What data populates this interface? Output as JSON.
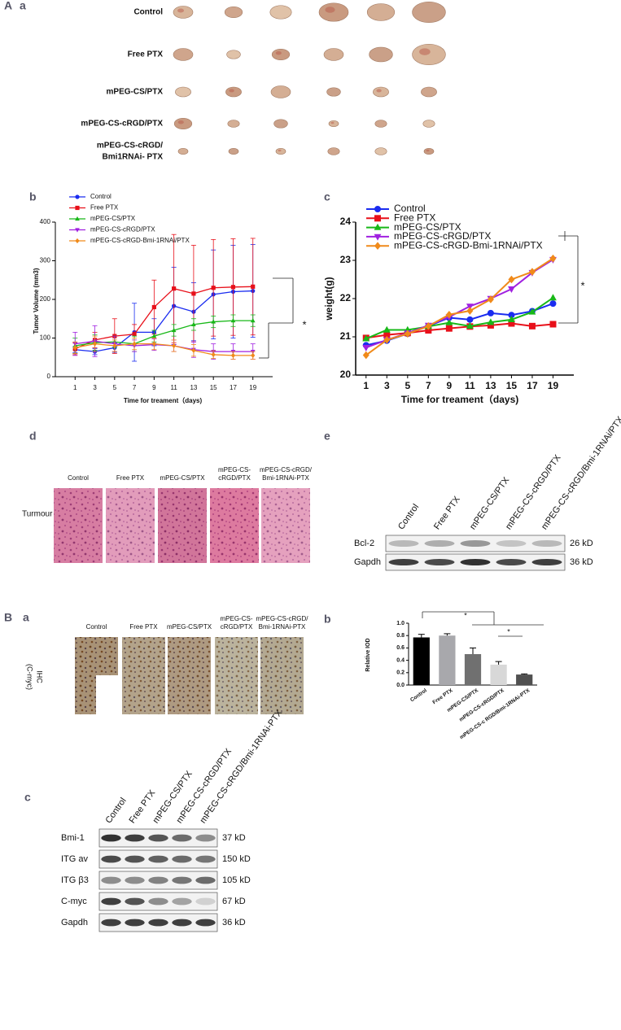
{
  "panel_labels": {
    "A": "A",
    "A_a": "a",
    "A_b": "b",
    "A_c": "c",
    "A_d": "d",
    "A_e": "e",
    "B": "B",
    "B_a": "a",
    "B_b": "b",
    "B_c": "c"
  },
  "tumor_photos": {
    "rows": [
      [
        "Control"
      ],
      [
        "Free PTX"
      ],
      [
        "mPEG-CS/PTX"
      ],
      [
        "mPEG-CS-cRGD/PTX"
      ],
      [
        "mPEG-CS-cRGD/",
        "Bmi1RNAi- PTX"
      ]
    ]
  },
  "histology": {
    "columns": [
      [
        "Control"
      ],
      [
        "Free PTX"
      ],
      [
        "mPEG-CS/PTX"
      ],
      [
        "mPEG-CS-",
        "cRGD/PTX"
      ],
      [
        "mPEG-CS-cRGD/",
        "Bmi-1RNAi-PTX"
      ]
    ],
    "row": "Turmour"
  },
  "blot_e": {
    "lanes": [
      "Control",
      "Free PTX",
      "mPEG-CS/PTX",
      "mPEG-CS-cRGD/PTX",
      "mPEG-CS-cRGD/Bmi-1RNAi/PTX"
    ],
    "rows": [
      {
        "protein": "Bcl-2",
        "size": "26 kD"
      },
      {
        "protein": "Gapdh",
        "size": "36 kD"
      }
    ]
  },
  "ihc": {
    "columns": [
      [
        "Control"
      ],
      [
        "Free PTX"
      ],
      [
        "mPEG-CS/PTX"
      ],
      [
        "mPEG-CS-",
        "cRGD/PTX"
      ],
      [
        "mPEG-CS-cRGD/",
        "Bmi-1RNAi-PTX"
      ]
    ],
    "row": [
      "IHC",
      "(C-myc)"
    ]
  },
  "blot_c": {
    "lanes": [
      "Control",
      "Free PTX",
      "mPEG-CS/PTX",
      "mPEG-CS-cRGD/PTX",
      "mPEG-CS-cRGD/Bmi-1RNAi-PTX"
    ],
    "rows": [
      {
        "protein": "Bmi-1",
        "size": "37 kD"
      },
      {
        "protein": "ITG av",
        "size": "150 kD"
      },
      {
        "protein": "ITG β3",
        "size": "105 kD"
      },
      {
        "protein": "C-myc",
        "size": "67 kD"
      },
      {
        "protein": "Gapdh",
        "size": "36 kD"
      }
    ]
  },
  "chart_data": [
    {
      "type": "line",
      "x_label": "Time for treament（days)",
      "y_label": "Tumor Volume (mm3)",
      "annotations": [
        "*"
      ],
      "x": [
        1,
        3,
        5,
        7,
        9,
        11,
        13,
        15,
        17,
        19
      ],
      "xlim": [
        -1,
        21
      ],
      "xticks": [
        1,
        3,
        5,
        7,
        9,
        11,
        13,
        15,
        17,
        19
      ],
      "ylim": [
        0,
        400
      ],
      "yticks": [
        0,
        100,
        200,
        300,
        400
      ],
      "series": [
        {
          "name": "Control",
          "color": "#1a2cf0",
          "marker": "circle",
          "values": [
            70,
            65,
            75,
            115,
            115,
            183,
            168,
            213,
            220,
            222
          ],
          "errors": [
            8,
            8,
            12,
            75,
            35,
            100,
            75,
            115,
            120,
            120
          ]
        },
        {
          "name": "Free PTX",
          "color": "#e8101a",
          "marker": "square",
          "values": [
            72,
            95,
            105,
            110,
            180,
            228,
            215,
            230,
            232,
            233
          ],
          "errors": [
            15,
            20,
            45,
            25,
            70,
            140,
            125,
            125,
            125,
            125
          ]
        },
        {
          "name": "mPEG-CS/PTX",
          "color": "#18b818",
          "marker": "triangle-up",
          "values": [
            80,
            88,
            90,
            85,
            105,
            120,
            135,
            142,
            145,
            145
          ],
          "errors": [
            20,
            20,
            15,
            20,
            15,
            15,
            15,
            15,
            15,
            15
          ]
        },
        {
          "name": "mPEG-CS-cRGD/PTX",
          "color": "#a020e0",
          "marker": "triangle-down",
          "values": [
            85,
            92,
            85,
            80,
            83,
            80,
            70,
            65,
            65,
            65
          ],
          "errors": [
            30,
            40,
            20,
            15,
            15,
            15,
            20,
            20,
            20,
            20
          ]
        },
        {
          "name": "mPEG-CS-cRGD-Bmi-1RNAi/PTX",
          "color": "#f08a1a",
          "marker": "diamond",
          "values": [
            75,
            85,
            80,
            85,
            85,
            80,
            68,
            57,
            55,
            55
          ],
          "errors": [
            15,
            20,
            15,
            15,
            15,
            15,
            15,
            10,
            10,
            10
          ]
        }
      ]
    },
    {
      "type": "line",
      "x_label": "Time for treament（days)",
      "y_label": "weight(g)",
      "annotations": [
        "*"
      ],
      "x": [
        1,
        3,
        5,
        7,
        9,
        11,
        13,
        15,
        17,
        19
      ],
      "xlim": [
        0,
        21
      ],
      "xticks": [
        1,
        3,
        5,
        7,
        9,
        11,
        13,
        15,
        17,
        19
      ],
      "ylim": [
        20,
        24
      ],
      "yticks": [
        20,
        21,
        22,
        23,
        24
      ],
      "series": [
        {
          "name": "Control",
          "color": "#1a2cf0",
          "marker": "circle",
          "values": [
            20.78,
            20.9,
            21.08,
            21.28,
            21.5,
            21.45,
            21.62,
            21.57,
            21.67,
            21.87
          ]
        },
        {
          "name": "Free PTX",
          "color": "#e8101a",
          "marker": "square",
          "values": [
            20.97,
            21.05,
            21.1,
            21.17,
            21.22,
            21.27,
            21.3,
            21.35,
            21.28,
            21.33
          ]
        },
        {
          "name": "mPEG-CS/PTX",
          "color": "#18b818",
          "marker": "triangle-up",
          "values": [
            20.95,
            21.18,
            21.18,
            21.27,
            21.37,
            21.28,
            21.38,
            21.45,
            21.65,
            22.02
          ]
        },
        {
          "name": "mPEG-CS-cRGD/PTX",
          "color": "#a020e0",
          "marker": "triangle-down",
          "values": [
            20.72,
            20.92,
            21.1,
            21.3,
            21.52,
            21.8,
            22.0,
            22.25,
            22.68,
            23.02
          ]
        },
        {
          "name": "mPEG-CS-cRGD-Bmi-1RNAi/PTX",
          "color": "#f08a1a",
          "marker": "diamond",
          "values": [
            20.52,
            20.92,
            21.08,
            21.28,
            21.58,
            21.68,
            21.98,
            22.5,
            22.7,
            23.05
          ]
        }
      ]
    },
    {
      "type": "bar",
      "y_label": "Relative IOD",
      "annotations": [
        "*",
        "*"
      ],
      "categories": [
        "Control",
        "Free PTX",
        "mPEG-CS/PTX",
        "mPEG-CS-cRGD/PTX",
        "mPEG-CS-c RGD/Bmi-1RNAi-PTX"
      ],
      "values": [
        0.77,
        0.8,
        0.5,
        0.33,
        0.17
      ],
      "errors": [
        0.05,
        0.03,
        0.1,
        0.05,
        0.01
      ],
      "colors": [
        "#000000",
        "#a8a8ac",
        "#707070",
        "#d8d8d8",
        "#505050"
      ],
      "ylim": [
        0,
        1
      ],
      "yticks": [
        {
          "value": 0,
          "label": "0.0"
        },
        0.2,
        0.4,
        0.6,
        0.8,
        {
          "value": 1,
          "label": "1.0"
        }
      ]
    }
  ]
}
